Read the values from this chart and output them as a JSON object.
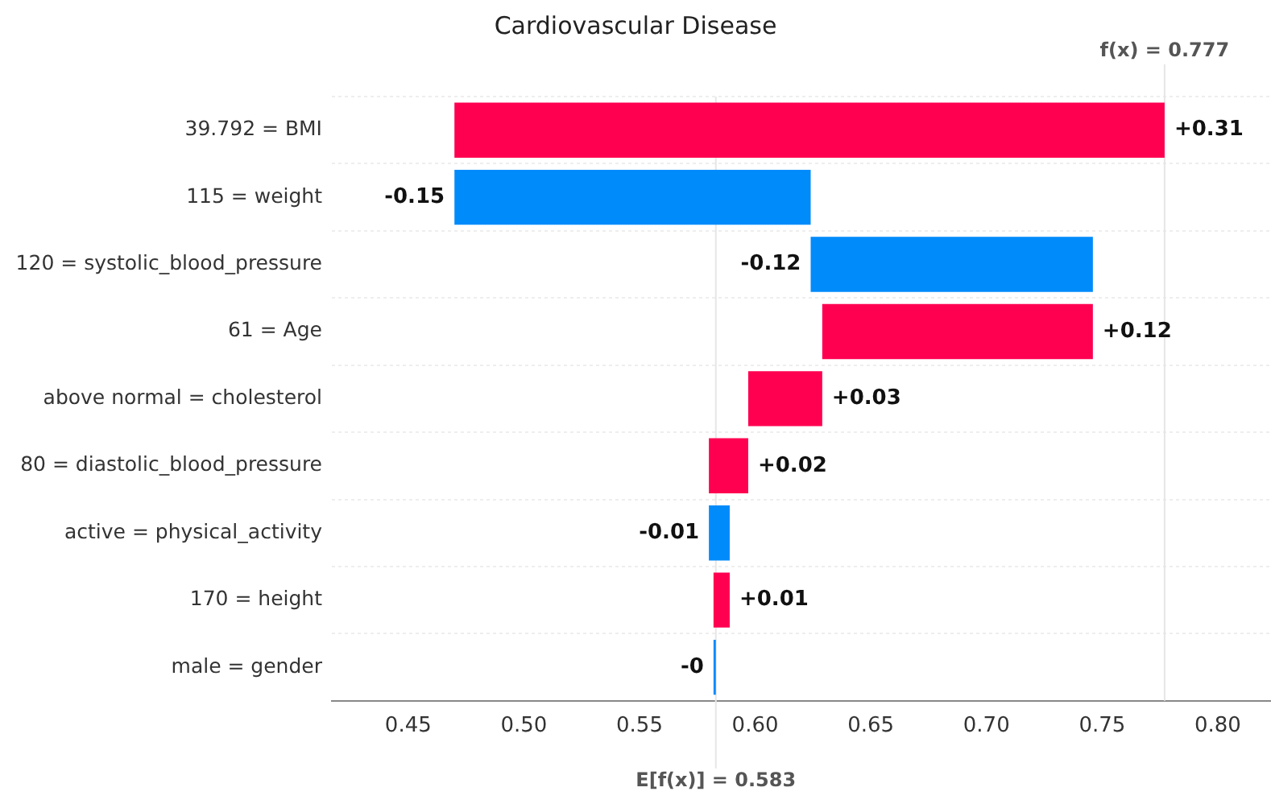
{
  "chart_data": {
    "type": "bar",
    "orientation": "horizontal",
    "title": "Cardiovascular Disease",
    "categories": [
      "39.792 = BMI",
      "115 = weight",
      "120 = systolic_blood_pressure",
      "61 = Age",
      "above normal = cholesterol",
      "80 = diastolic_blood_pressure",
      "active = physical_activity",
      "170 = height",
      "male = gender"
    ],
    "base": [
      0.47,
      0.624,
      0.746,
      0.629,
      0.597,
      0.58,
      0.589,
      0.582,
      0.583
    ],
    "values": [
      0.307,
      -0.154,
      -0.122,
      0.117,
      0.032,
      0.017,
      -0.009,
      0.007,
      -0.001
    ],
    "colors": [
      "#ff0051",
      "#008bfb",
      "#008bfb",
      "#ff0051",
      "#ff0051",
      "#ff0051",
      "#008bfb",
      "#ff0051",
      "#008bfb"
    ],
    "value_labels": [
      "+0.31",
      "-0.15",
      "-0.12",
      "+0.12",
      "+0.03",
      "+0.02",
      "-0.01",
      "+0.01",
      "-0"
    ],
    "xlim": [
      0.417,
      0.823
    ],
    "xticks": [
      {
        "value": 0.45,
        "label": "0.45"
      },
      {
        "value": 0.5,
        "label": "0.50"
      },
      {
        "value": 0.55,
        "label": "0.55"
      },
      {
        "value": 0.6,
        "label": "0.60"
      },
      {
        "value": 0.65,
        "label": "0.65"
      },
      {
        "value": 0.7,
        "label": "0.70"
      },
      {
        "value": 0.75,
        "label": "0.75"
      },
      {
        "value": 0.8,
        "label": "0.80"
      }
    ],
    "ref_lines": [
      {
        "axis": "x",
        "value": 0.777,
        "label": "f(x) = 0.777",
        "color": "#e6e6e6"
      },
      {
        "axis": "x",
        "value": 0.583,
        "label": "E[f(x)] = 0.583",
        "color": "#e6e6e6"
      }
    ],
    "grid": "y",
    "legend": false
  }
}
